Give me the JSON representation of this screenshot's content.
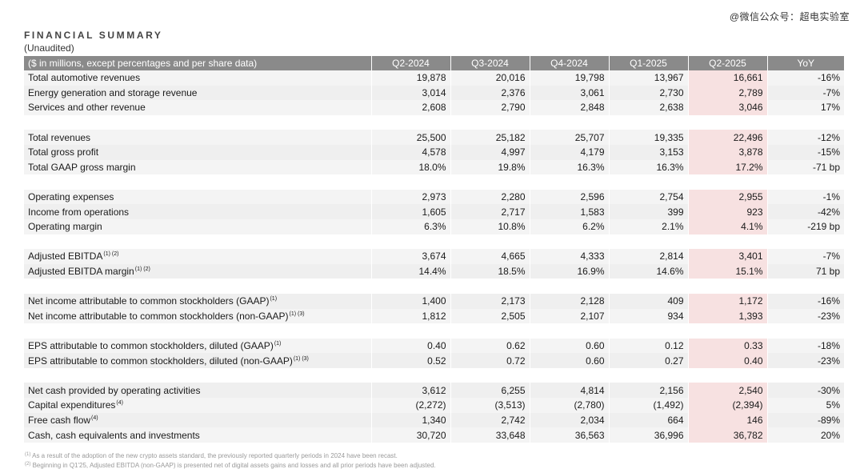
{
  "watermark": "@微信公众号：超电实验室",
  "title": "FINANCIAL SUMMARY",
  "subtitle": "(Unaudited)",
  "header": {
    "label": "($ in millions, except percentages and per share data)",
    "periods": [
      "Q2-2024",
      "Q3-2024",
      "Q4-2024",
      "Q1-2025",
      "Q2-2025"
    ],
    "yoy": "YoY"
  },
  "groups": [
    [
      {
        "label": "Total automotive revenues",
        "sup": "",
        "values": [
          "19,878",
          "20,016",
          "19,798",
          "13,967",
          "16,661"
        ],
        "yoy": "-16%"
      },
      {
        "label": "Energy generation and storage revenue",
        "sup": "",
        "values": [
          "3,014",
          "2,376",
          "3,061",
          "2,730",
          "2,789"
        ],
        "yoy": "-7%"
      },
      {
        "label": "Services and other revenue",
        "sup": "",
        "values": [
          "2,608",
          "2,790",
          "2,848",
          "2,638",
          "3,046"
        ],
        "yoy": "17%"
      }
    ],
    [
      {
        "label": "Total revenues",
        "sup": "",
        "values": [
          "25,500",
          "25,182",
          "25,707",
          "19,335",
          "22,496"
        ],
        "yoy": "-12%"
      },
      {
        "label": "Total gross profit",
        "sup": "",
        "values": [
          "4,578",
          "4,997",
          "4,179",
          "3,153",
          "3,878"
        ],
        "yoy": "-15%"
      },
      {
        "label": "Total GAAP gross margin",
        "sup": "",
        "values": [
          "18.0%",
          "19.8%",
          "16.3%",
          "16.3%",
          "17.2%"
        ],
        "yoy": "-71 bp"
      }
    ],
    [
      {
        "label": "Operating expenses",
        "sup": "",
        "values": [
          "2,973",
          "2,280",
          "2,596",
          "2,754",
          "2,955"
        ],
        "yoy": "-1%"
      },
      {
        "label": "Income from operations",
        "sup": "",
        "values": [
          "1,605",
          "2,717",
          "1,583",
          "399",
          "923"
        ],
        "yoy": "-42%"
      },
      {
        "label": "Operating margin",
        "sup": "",
        "values": [
          "6.3%",
          "10.8%",
          "6.2%",
          "2.1%",
          "4.1%"
        ],
        "yoy": "-219 bp"
      }
    ],
    [
      {
        "label": "Adjusted EBITDA",
        "sup": "(1) (2)",
        "values": [
          "3,674",
          "4,665",
          "4,333",
          "2,814",
          "3,401"
        ],
        "yoy": "-7%"
      },
      {
        "label": "Adjusted EBITDA margin",
        "sup": "(1) (2)",
        "values": [
          "14.4%",
          "18.5%",
          "16.9%",
          "14.6%",
          "15.1%"
        ],
        "yoy": "71 bp"
      }
    ],
    [
      {
        "label": "Net income attributable to common stockholders (GAAP)",
        "sup": "(1)",
        "values": [
          "1,400",
          "2,173",
          "2,128",
          "409",
          "1,172"
        ],
        "yoy": "-16%"
      },
      {
        "label": "Net income attributable to common stockholders (non-GAAP)",
        "sup": "(1) (3)",
        "values": [
          "1,812",
          "2,505",
          "2,107",
          "934",
          "1,393"
        ],
        "yoy": "-23%"
      }
    ],
    [
      {
        "label": "EPS attributable to common stockholders, diluted (GAAP)",
        "sup": "(1)",
        "values": [
          "0.40",
          "0.62",
          "0.60",
          "0.12",
          "0.33"
        ],
        "yoy": "-18%"
      },
      {
        "label": "EPS attributable to common stockholders, diluted (non-GAAP)",
        "sup": "(1) (3)",
        "values": [
          "0.52",
          "0.72",
          "0.60",
          "0.27",
          "0.40"
        ],
        "yoy": "-23%"
      }
    ],
    [
      {
        "label": "Net cash provided by operating activities",
        "sup": "",
        "values": [
          "3,612",
          "6,255",
          "4,814",
          "2,156",
          "2,540"
        ],
        "yoy": "-30%"
      },
      {
        "label": "Capital expenditures",
        "sup": "(4)",
        "values": [
          "(2,272)",
          "(3,513)",
          "(2,780)",
          "(1,492)",
          "(2,394)"
        ],
        "yoy": "5%"
      },
      {
        "label": "Free cash flow",
        "sup": "(4)",
        "values": [
          "1,340",
          "2,742",
          "2,034",
          "664",
          "146"
        ],
        "yoy": "-89%"
      },
      {
        "label": "Cash, cash equivalents and investments",
        "sup": "",
        "values": [
          "30,720",
          "33,648",
          "36,563",
          "36,996",
          "36,782"
        ],
        "yoy": "20%"
      }
    ]
  ],
  "footnotes": [
    {
      "mark": "(1)",
      "text": "As a result of the adoption of the new crypto assets standard, the previously reported quarterly periods in 2024 have been recast."
    },
    {
      "mark": "(2)",
      "text": "Beginning in Q1'25, Adjusted EBITDA (non-GAAP) is presented net of digital assets gains and losses and all prior periods have been adjusted."
    }
  ],
  "colors": {
    "header_bg": "#8a8a8a",
    "row_bg": "#efefef",
    "highlight": "#f7e1e1"
  }
}
